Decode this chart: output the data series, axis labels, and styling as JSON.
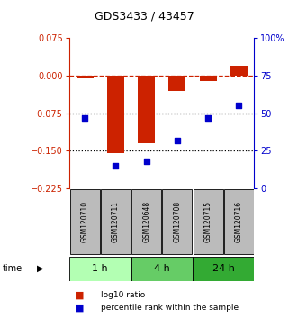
{
  "title": "GDS3433 / 43457",
  "samples": [
    "GSM120710",
    "GSM120711",
    "GSM120648",
    "GSM120708",
    "GSM120715",
    "GSM120716"
  ],
  "log10_ratio": [
    -0.005,
    -0.155,
    -0.135,
    -0.03,
    -0.01,
    0.02
  ],
  "percentile_rank": [
    47,
    15,
    18,
    32,
    47,
    55
  ],
  "ylim_left": [
    -0.225,
    0.075
  ],
  "ylim_right": [
    0,
    100
  ],
  "yticks_left": [
    0.075,
    0,
    -0.075,
    -0.15,
    -0.225
  ],
  "yticks_right": [
    100,
    75,
    50,
    25,
    0
  ],
  "time_groups": [
    {
      "label": "1 h",
      "start": 0,
      "end": 2,
      "color": "#b3ffb3"
    },
    {
      "label": "4 h",
      "start": 2,
      "end": 4,
      "color": "#66cc66"
    },
    {
      "label": "24 h",
      "start": 4,
      "end": 6,
      "color": "#33aa33"
    }
  ],
  "bar_color": "#cc2200",
  "scatter_color": "#0000cc",
  "dashed_line_color": "#cc2200",
  "dotted_line_color": "#000000",
  "bg_color": "#ffffff",
  "sample_box_color": "#bbbbbb",
  "legend_bar_label": "log10 ratio",
  "legend_scatter_label": "percentile rank within the sample",
  "title_fontsize": 9,
  "tick_fontsize": 7,
  "sample_fontsize": 5.5,
  "time_fontsize": 8,
  "legend_fontsize": 6.5
}
